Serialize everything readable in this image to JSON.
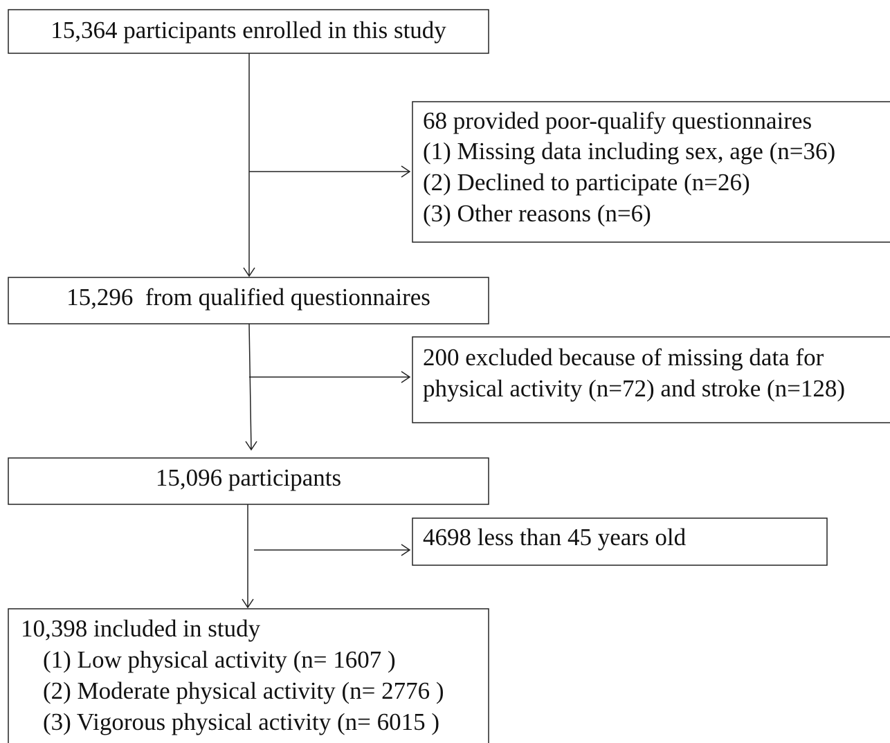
{
  "nodes": [
    {
      "text": "15,364 participants enrolled in this study"
    },
    {
      "lines": [
        "68 provided poor-qualify questionnaires",
        "(1) Missing data including sex, age (n=36)",
        "(2) Declined to participate (n=26)",
        "(3) Other reasons (n=6)"
      ]
    },
    {
      "text": "15,296  from qualified questionnaires"
    },
    {
      "lines": [
        "200 excluded because of missing data for",
        "physical activity (n=72) and stroke (n=128)"
      ]
    },
    {
      "text": "15,096 participants"
    },
    {
      "text": "4698 less than 45 years old"
    },
    {
      "lines": [
        "10,398 included in study",
        "(1) Low physical activity (n= 1607 )",
        "(2) Moderate physical activity (n= 2776 )",
        "(3) Vigorous physical activity (n= 6015 )"
      ]
    }
  ]
}
